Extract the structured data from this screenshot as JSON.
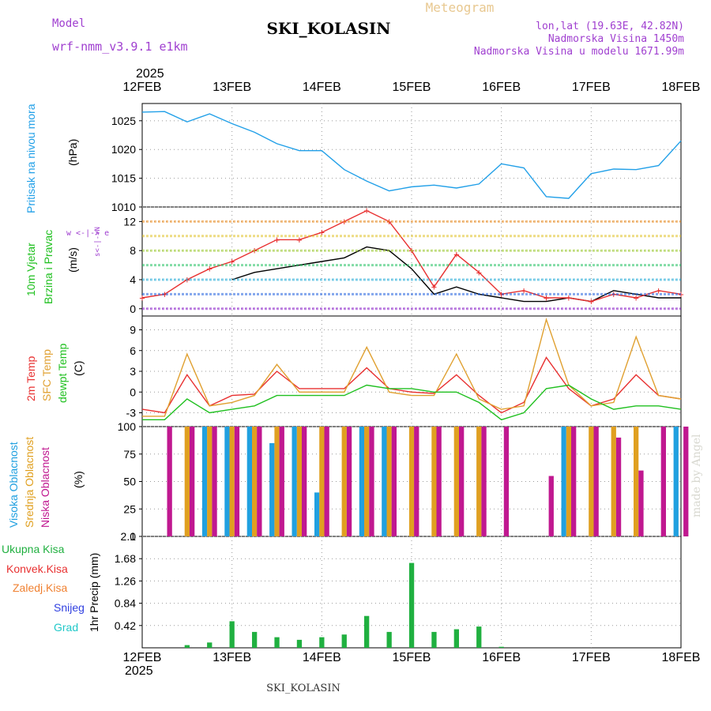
{
  "header": {
    "model_label": "Model",
    "model_name": "wrf-nmm_v3.9.1 e1km",
    "station": "SKI_KOLASIN",
    "product": "Meteogram",
    "lonlat": "lon,lat (19.63E, 42.82N)",
    "altitude": "Nadmorska Visina 1450m",
    "model_altitude": "Nadmorska Visina u modelu 1671.99m",
    "year_top": "2025",
    "year_bottom": "2025",
    "footer_station": "SKI_KOLASIN",
    "watermark": "made by Angel"
  },
  "colors": {
    "pressure": "#22a0e8",
    "temp2m": "#e83030",
    "sfc_temp": "#e0a030",
    "dewpt": "#20c020",
    "cloud_high": "#20a0e0",
    "cloud_mid": "#e0a020",
    "cloud_low": "#c01890",
    "precip_total": "#20b040",
    "precip_conv": "#e83030",
    "precip_frz": "#f08030",
    "precip_snow": "#3040e0",
    "precip_grad": "#20c8c8",
    "wind_speed": "#000000",
    "wind_gust": "#e83030",
    "label_purple": "#a040d0"
  },
  "x_ticks": [
    "12FEB",
    "13FEB",
    "14FEB",
    "15FEB",
    "16FEB",
    "17FEB",
    "18FEB"
  ],
  "panels": {
    "pressure": {
      "title": "Pritisak na nivou mora",
      "unit": "(hPa)"
    },
    "wind": {
      "title1": "10m Vjetar",
      "title2": "Brzina i Pravac",
      "unit": "(m/s)",
      "compass": "w <-|-> e",
      "compass_v": "s<-|->N"
    },
    "temp": {
      "title1": "2m Temp",
      "title2": "SFC Temp",
      "title3": "dewpt Temp",
      "unit": "(C)"
    },
    "cloud": {
      "title1": "Visoka Oblacnost",
      "title2": "Srednja Oblacnost",
      "title3": "Niska Oblacnost",
      "unit": "(%)"
    },
    "precip": {
      "legend": [
        "Ukupna Kisa",
        "Konvek.Kisa",
        "Zaledj.Kisa",
        "Snijeg",
        "Grad"
      ],
      "unit": "1hr Precip (mm)"
    }
  },
  "chart_data": [
    {
      "type": "line",
      "panel": "pressure",
      "x": [
        "12FEB",
        "12FEB 06",
        "12FEB 12",
        "12FEB 18",
        "13FEB",
        "13FEB 06",
        "13FEB 12",
        "13FEB 18",
        "14FEB",
        "14FEB 06",
        "14FEB 12",
        "14FEB 18",
        "15FEB",
        "15FEB 06",
        "15FEB 12",
        "15FEB 18",
        "16FEB",
        "16FEB 06",
        "16FEB 12",
        "16FEB 18",
        "17FEB",
        "17FEB 06",
        "17FEB 12",
        "17FEB 18",
        "18FEB"
      ],
      "series": [
        {
          "values": [
            1026.5,
            1026.6,
            1024.8,
            1026.2,
            1024.5,
            1023.0,
            1021.0,
            1019.8,
            1019.8,
            1016.5,
            1014.5,
            1012.8,
            1013.5,
            1013.8,
            1013.3,
            1014.0,
            1017.5,
            1016.8,
            1011.8,
            1011.5,
            1015.8,
            1016.6,
            1016.5,
            1017.2,
            1021.5
          ]
        }
      ],
      "ylim": [
        1010,
        1028
      ],
      "yticks": [
        1010,
        1015,
        1020,
        1025
      ]
    },
    {
      "type": "line",
      "panel": "wind",
      "x": [
        "12FEB",
        "12FEB 06",
        "12FEB 12",
        "12FEB 18",
        "13FEB",
        "13FEB 06",
        "13FEB 12",
        "13FEB 18",
        "14FEB",
        "14FEB 06",
        "14FEB 12",
        "14FEB 18",
        "15FEB",
        "15FEB 06",
        "15FEB 12",
        "15FEB 18",
        "16FEB",
        "16FEB 06",
        "16FEB 12",
        "16FEB 18",
        "17FEB",
        "17FEB 06",
        "17FEB 12",
        "17FEB 18",
        "18FEB"
      ],
      "series": [
        {
          "values": [
            null,
            null,
            null,
            null,
            4.0,
            5.0,
            5.5,
            6.0,
            6.5,
            7.0,
            8.5,
            8.0,
            5.5,
            2.0,
            3.0,
            2.0,
            1.5,
            1.0,
            1.0,
            1.5,
            1.0,
            2.5,
            2.0,
            1.5,
            1.5
          ]
        },
        {
          "values": [
            1.5,
            2.0,
            4.0,
            5.5,
            6.5,
            8.0,
            9.5,
            9.5,
            10.5,
            12.0,
            13.5,
            12.0,
            8.0,
            3.0,
            7.5,
            5.0,
            2.0,
            2.5,
            1.5,
            1.5,
            1.0,
            2.0,
            1.5,
            2.5,
            2.0
          ]
        }
      ],
      "ylim": [
        -1,
        14
      ],
      "yticks": [
        0,
        4,
        8,
        12
      ]
    },
    {
      "type": "line",
      "panel": "temp",
      "x": [
        "12FEB",
        "12FEB 06",
        "12FEB 12",
        "12FEB 18",
        "13FEB",
        "13FEB 06",
        "13FEB 12",
        "13FEB 18",
        "14FEB",
        "14FEB 06",
        "14FEB 12",
        "14FEB 18",
        "15FEB",
        "15FEB 06",
        "15FEB 12",
        "15FEB 18",
        "16FEB",
        "16FEB 06",
        "16FEB 12",
        "16FEB 18",
        "17FEB",
        "17FEB 06",
        "17FEB 12",
        "17FEB 18",
        "18FEB"
      ],
      "series": [
        {
          "values": [
            -2.5,
            -3.0,
            2.5,
            -2.0,
            -0.5,
            -0.3,
            3.0,
            0.5,
            0.5,
            0.5,
            3.5,
            0.5,
            0.0,
            -0.2,
            2.5,
            -0.5,
            -3.0,
            -1.5,
            5.0,
            0.5,
            -2.0,
            -1.0,
            2.5,
            -0.5,
            -1.0
          ]
        },
        {
          "values": [
            -3.5,
            -3.5,
            5.5,
            -2.0,
            -1.5,
            -0.5,
            4.0,
            0.0,
            0.0,
            0.0,
            6.5,
            0.0,
            -0.5,
            -0.5,
            5.5,
            -1.0,
            -2.5,
            -2.0,
            10.5,
            1.0,
            -2.0,
            -1.5,
            8.0,
            -0.5,
            -1.0
          ]
        },
        {
          "values": [
            -4.0,
            -4.0,
            -1.0,
            -3.0,
            -2.5,
            -2.0,
            -0.5,
            -0.5,
            -0.5,
            -0.5,
            1.0,
            0.5,
            0.5,
            0.0,
            0.0,
            -1.5,
            -4.0,
            -3.0,
            0.5,
            1.0,
            -1.0,
            -2.5,
            -2.0,
            -2.0,
            -2.5
          ]
        }
      ],
      "ylim": [
        -5,
        11
      ],
      "yticks": [
        -3,
        0,
        3,
        6,
        9
      ]
    },
    {
      "type": "bar",
      "panel": "cloud",
      "x": [
        "12FEB",
        "12FEB 06",
        "12FEB 12",
        "12FEB 18",
        "13FEB",
        "13FEB 06",
        "13FEB 12",
        "13FEB 18",
        "14FEB",
        "14FEB 06",
        "14FEB 12",
        "14FEB 18",
        "15FEB",
        "15FEB 06",
        "15FEB 12",
        "15FEB 18",
        "16FEB",
        "16FEB 06",
        "16FEB 12",
        "16FEB 18",
        "17FEB",
        "17FEB 06",
        "17FEB 12",
        "17FEB 18",
        "18FEB"
      ],
      "series": [
        {
          "values": [
            0,
            0,
            0,
            100,
            100,
            100,
            85,
            100,
            40,
            0,
            100,
            100,
            0,
            0,
            0,
            0,
            0,
            0,
            0,
            100,
            0,
            0,
            0,
            0,
            100
          ]
        },
        {
          "values": [
            0,
            0,
            100,
            100,
            100,
            100,
            100,
            100,
            100,
            100,
            100,
            100,
            100,
            100,
            100,
            100,
            0,
            0,
            0,
            100,
            100,
            100,
            100,
            0,
            0
          ]
        },
        {
          "values": [
            0,
            100,
            100,
            100,
            100,
            100,
            100,
            100,
            100,
            100,
            100,
            100,
            100,
            100,
            100,
            100,
            100,
            0,
            55,
            100,
            100,
            90,
            60,
            100,
            100
          ]
        }
      ],
      "ylim": [
        0,
        100
      ],
      "yticks": [
        0,
        25,
        50,
        75,
        100
      ]
    },
    {
      "type": "bar",
      "panel": "precip",
      "x": [
        "12FEB",
        "12FEB 06",
        "12FEB 12",
        "12FEB 18",
        "13FEB",
        "13FEB 06",
        "13FEB 12",
        "13FEB 18",
        "14FEB",
        "14FEB 06",
        "14FEB 12",
        "14FEB 18",
        "15FEB",
        "15FEB 06",
        "15FEB 12",
        "15FEB 18",
        "16FEB",
        "16FEB 06",
        "16FEB 12",
        "16FEB 18",
        "17FEB",
        "17FEB 06",
        "17FEB 12",
        "17FEB 18",
        "18FEB"
      ],
      "series": [
        {
          "values": [
            0,
            0,
            0.05,
            0.1,
            0.5,
            0.3,
            0.2,
            0.15,
            0.2,
            0.25,
            0.6,
            0.3,
            1.6,
            0.3,
            0.35,
            0.4,
            0.02,
            0,
            0,
            0,
            0,
            0,
            0,
            0,
            0
          ]
        }
      ],
      "ylim": [
        0,
        2.1
      ],
      "yticks": [
        0.42,
        0.84,
        1.26,
        1.68,
        2.1
      ]
    }
  ]
}
